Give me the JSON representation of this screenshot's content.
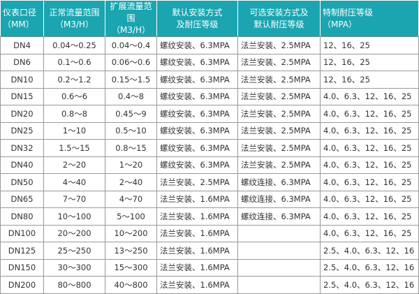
{
  "header": [
    {
      "line1": "仪表口径",
      "line2": "（MM）"
    },
    {
      "line1": "正常流量范围",
      "line2": "（M3/H）"
    },
    {
      "line1": "扩展流量范围",
      "line2": "（M3/H）"
    },
    {
      "line1": "默认安装方式",
      "line2": "及耐压等级"
    },
    {
      "line1": "可选安装方式及",
      "line2": "默认耐压等级"
    },
    {
      "line1": "特制耐压等级",
      "line2": "（MPA）"
    }
  ],
  "header_color": "#1aa5b0",
  "rows": [
    [
      "DN4",
      "0.04～0.25",
      "0.04～0.4",
      "螺纹安装、6.3MPA",
      "法兰安装、2.5MPA",
      "12、16、25"
    ],
    [
      "DN6",
      "0.1～0.6",
      "0.06～0.6",
      "螺纹安装、6.3MPA",
      "法兰安装、2.5MPA",
      "12、16、25"
    ],
    [
      "DN10",
      "0.2～1.2",
      "0.15～1.5",
      "螺纹安装、6.3MPA",
      "法兰安装、2.5MPA",
      "12、16、25"
    ],
    [
      "DN15",
      "0.6～6",
      "0.4～8",
      "螺纹安装、6.3MPA",
      "法兰安装、2.5MPA",
      "4.0、6.3、12、16、25"
    ],
    [
      "DN20",
      "0.8～8",
      "0.45～9",
      "螺纹安装、6.3MPA",
      "法兰安装、2.5MPA",
      "4.0、6.3、12、16、25"
    ],
    [
      "DN25",
      "1～10",
      "0.5～10",
      "螺纹安装、6.3MPA",
      "法兰安装、2.5MPA",
      "4.0、6.3、12、16、25"
    ],
    [
      "DN32",
      "1.5～15",
      "0.8～15",
      "螺纹安装、6.3MPA",
      "法兰安装、2.5MPA",
      "4.0、6.3、12、16、25"
    ],
    [
      "DN40",
      "2～20",
      "1～20",
      "螺纹安装、6.3MPA",
      "法兰安装、2.5MPA",
      "4.0、6.3、12、16、25"
    ],
    [
      "DN50",
      "4～40",
      "2～40",
      "法兰安装、2.5MPA",
      "螺纹连接、6.3MPA",
      "4.0、6.3、12、16、25"
    ],
    [
      "DN65",
      "7～70",
      "4～70",
      "法兰安装、1.6MPA",
      "螺纹连接、6.3MPA",
      "4.0、6.3、12、16、25"
    ],
    [
      "DN80",
      "10～100",
      "5～100",
      "法兰安装、1.6MPA",
      "螺纹连接、6.3MPA",
      "4.0、6.3、12、16、25"
    ],
    [
      "DN100",
      "20～200",
      "10～200",
      "法兰安装、1.6MPA",
      "",
      "4.0、6.3、12、16、25"
    ],
    [
      "DN125",
      "25～250",
      "13～250",
      "法兰安装、1.6MPA",
      "",
      "2.5、4.0、6.3、12、16"
    ],
    [
      "DN150",
      "30～300",
      "15～300",
      "法兰安装、1.6MPA",
      "",
      "2.5、4.0、6.3、12、16"
    ],
    [
      "DN200",
      "80～800",
      "40～800",
      "法兰安装、1.6MPA",
      "",
      "2.5、4.0、6.3、12、16"
    ]
  ]
}
